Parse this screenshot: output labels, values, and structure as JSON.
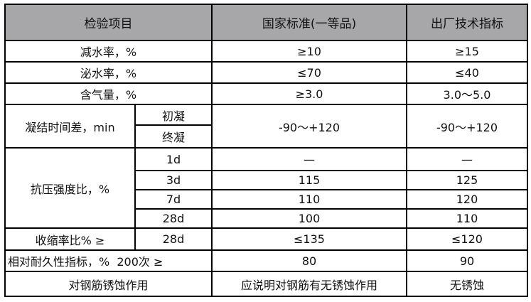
{
  "header": {
    "item": "检验项目",
    "national": "国家标准(一等品)",
    "factory": "出厂技术指标"
  },
  "rows": {
    "water_reduction": {
      "label": "减水率，%",
      "national": "≥10",
      "factory": "≥15"
    },
    "bleeding": {
      "label": "泌水率，%",
      "national": "≤70",
      "factory": "≤40"
    },
    "air_content": {
      "label": "含气量，%",
      "national": "≥3.0",
      "factory": "3.0～5.0"
    },
    "setting_time": {
      "label": "凝结时间差，min",
      "initial": "初凝",
      "final": "终凝",
      "national": "-90～+120",
      "factory": "-90～+120"
    },
    "compressive": {
      "label": "抗压强度比，%",
      "ages": [
        {
          "age": "1d",
          "national": "—",
          "factory": "—"
        },
        {
          "age": "3d",
          "national": "115",
          "factory": "125"
        },
        {
          "age": "7d",
          "national": "110",
          "factory": "120"
        },
        {
          "age": "28d",
          "national": "100",
          "factory": "110"
        }
      ]
    },
    "shrinkage": {
      "label": "收缩率比% ≥",
      "age": "28d",
      "national": "≤135",
      "factory": "≤120"
    },
    "durability": {
      "label": "相对耐久性指标，%  200次 ≥",
      "national": "80",
      "factory": "90"
    },
    "corrosion": {
      "label": "对钢筋锈蚀作用",
      "national": "应说明对钢筋有无锈蚀作用",
      "factory": "无锈蚀"
    }
  }
}
